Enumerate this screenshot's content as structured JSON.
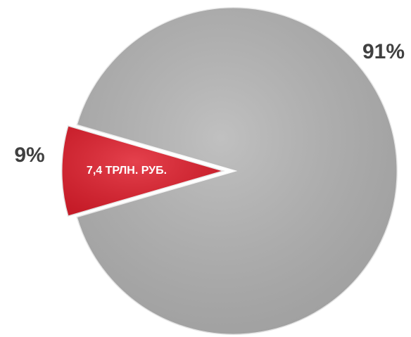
{
  "chart_data": {
    "type": "pie",
    "categories": [
      null,
      "7,4 ТРЛН. РУБ."
    ],
    "values": [
      91,
      9
    ],
    "value_labels": [
      "91%",
      "9%"
    ],
    "colors": [
      "#b5b5b5",
      "#e01f2d"
    ]
  }
}
